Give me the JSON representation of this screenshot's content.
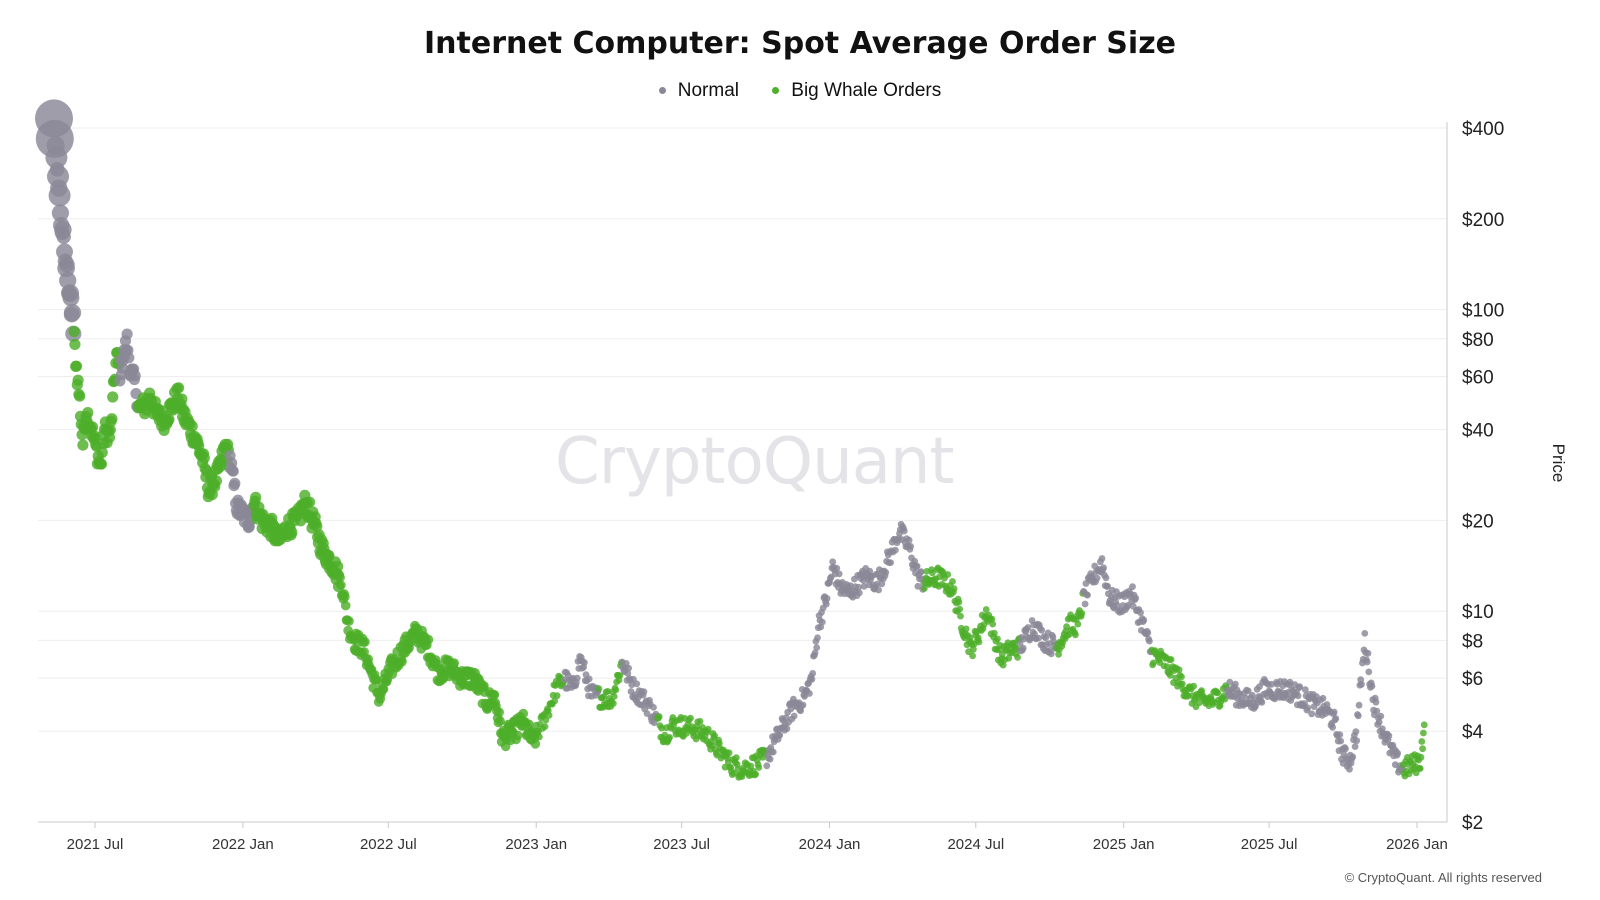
{
  "chart_data": {
    "type": "scatter",
    "title": "Internet Computer: Spot Average Order Size",
    "ylabel": "Price",
    "yscale": "log",
    "ylim": [
      2,
      420
    ],
    "y_ticks": [
      {
        "value": 400,
        "label": "$400"
      },
      {
        "value": 200,
        "label": "$200"
      },
      {
        "value": 100,
        "label": "$100"
      },
      {
        "value": 80,
        "label": "$80"
      },
      {
        "value": 60,
        "label": "$60"
      },
      {
        "value": 40,
        "label": "$40"
      },
      {
        "value": 20,
        "label": "$20"
      },
      {
        "value": 10,
        "label": "$10"
      },
      {
        "value": 8,
        "label": "$8"
      },
      {
        "value": 6,
        "label": "$6"
      },
      {
        "value": 4,
        "label": "$4"
      },
      {
        "value": 2,
        "label": "$2"
      }
    ],
    "x_ticks": [
      "2021 Jul",
      "2022 Jan",
      "2022 Jul",
      "2023 Jan",
      "2023 Jul",
      "2024 Jan",
      "2024 Jul",
      "2025 Jan",
      "2025 Jul",
      "2026 Jan"
    ],
    "x_start": "2021-05-10",
    "x_end": "2026-01-20",
    "legend": [
      {
        "name": "Normal",
        "color": "#8a8796"
      },
      {
        "name": "Big Whale Orders",
        "color": "#4daf2a"
      }
    ],
    "series": [
      {
        "name": "Price (daily, keyframes)",
        "keypoints": [
          [
            "2021-05-11",
            420,
            "Normal",
            "L"
          ],
          [
            "2021-05-12",
            380,
            "Normal",
            "L"
          ],
          [
            "2021-05-14",
            310,
            "Normal",
            "M"
          ],
          [
            "2021-05-16",
            260,
            "Normal",
            "M"
          ],
          [
            "2021-05-18",
            230,
            "Normal",
            "M"
          ],
          [
            "2021-05-20",
            200,
            "Normal",
            "S"
          ],
          [
            "2021-05-23",
            165,
            "Normal",
            "S"
          ],
          [
            "2021-05-26",
            140,
            "Normal",
            "S"
          ],
          [
            "2021-05-29",
            120,
            "Normal",
            "S"
          ],
          [
            "2021-06-01",
            110,
            "Normal",
            "S"
          ],
          [
            "2021-06-03",
            92,
            "Normal",
            "S"
          ],
          [
            "2021-06-05",
            80,
            "Big Whale Orders",
            "S"
          ],
          [
            "2021-06-08",
            64,
            "Big Whale Orders",
            "S"
          ],
          [
            "2021-06-12",
            50,
            "Big Whale Orders",
            "S"
          ],
          [
            "2021-06-16",
            36,
            "Big Whale Orders",
            "S"
          ],
          [
            "2021-06-20",
            46,
            "Big Whale Orders",
            "S"
          ],
          [
            "2021-06-25",
            42,
            "Big Whale Orders",
            "S"
          ],
          [
            "2021-07-02",
            35,
            "Big Whale Orders",
            "S"
          ],
          [
            "2021-07-08",
            30,
            "Big Whale Orders",
            "S"
          ],
          [
            "2021-07-13",
            40,
            "Big Whale Orders",
            "S"
          ],
          [
            "2021-07-20",
            38,
            "Big Whale Orders",
            "S"
          ],
          [
            "2021-07-25",
            58,
            "Big Whale Orders",
            "S"
          ],
          [
            "2021-07-28",
            70,
            "Big Whale Orders",
            "S"
          ],
          [
            "2021-08-01",
            62,
            "Normal",
            "S"
          ],
          [
            "2021-08-06",
            70,
            "Normal",
            "S"
          ],
          [
            "2021-08-10",
            79,
            "Normal",
            "S"
          ],
          [
            "2021-08-14",
            62,
            "Normal",
            "S"
          ],
          [
            "2021-08-20",
            57,
            "Normal",
            "S"
          ],
          [
            "2021-08-24",
            47,
            "Big Whale Orders",
            "S"
          ],
          [
            "2021-09-02",
            48,
            "Big Whale Orders",
            "S"
          ],
          [
            "2021-09-08",
            52,
            "Big Whale Orders",
            "S"
          ],
          [
            "2021-09-15",
            45,
            "Big Whale Orders",
            "S"
          ],
          [
            "2021-09-25",
            43,
            "Big Whale Orders",
            "S"
          ],
          [
            "2021-10-05",
            48,
            "Big Whale Orders",
            "S"
          ],
          [
            "2021-10-12",
            52,
            "Big Whale Orders",
            "S"
          ],
          [
            "2021-10-20",
            44,
            "Big Whale Orders",
            "S"
          ],
          [
            "2021-11-02",
            38,
            "Big Whale Orders",
            "S"
          ],
          [
            "2021-11-12",
            32,
            "Big Whale Orders",
            "S"
          ],
          [
            "2021-11-20",
            25,
            "Big Whale Orders",
            "S"
          ],
          [
            "2021-12-02",
            29,
            "Big Whale Orders",
            "S"
          ],
          [
            "2021-12-10",
            35,
            "Big Whale Orders",
            "S"
          ],
          [
            "2021-12-16",
            32,
            "Normal",
            "S"
          ],
          [
            "2021-12-25",
            22,
            "Normal",
            "S"
          ],
          [
            "2022-01-08",
            20,
            "Normal",
            "S"
          ],
          [
            "2022-01-15",
            23,
            "Big Whale Orders",
            "S"
          ],
          [
            "2022-01-25",
            20,
            "Big Whale Orders",
            "S"
          ],
          [
            "2022-02-05",
            19,
            "Big Whale Orders",
            "S"
          ],
          [
            "2022-02-15",
            17,
            "Big Whale Orders",
            "S"
          ],
          [
            "2022-02-25",
            19,
            "Big Whale Orders",
            "S"
          ],
          [
            "2022-03-10",
            20,
            "Big Whale Orders",
            "S"
          ],
          [
            "2022-03-20",
            23,
            "Big Whale Orders",
            "S"
          ],
          [
            "2022-04-01",
            19,
            "Big Whale Orders",
            "S"
          ],
          [
            "2022-04-10",
            16,
            "Big Whale Orders",
            "S"
          ],
          [
            "2022-04-25",
            14,
            "Big Whale Orders",
            "S"
          ],
          [
            "2022-05-05",
            12,
            "Big Whale Orders",
            "S"
          ],
          [
            "2022-05-12",
            9,
            "Big Whale Orders",
            "S"
          ],
          [
            "2022-05-20",
            8,
            "Big Whale Orders",
            "S"
          ],
          [
            "2022-06-01",
            7.5,
            "Big Whale Orders",
            "S"
          ],
          [
            "2022-06-12",
            6,
            "Big Whale Orders",
            "S"
          ],
          [
            "2022-06-20",
            5.2,
            "Big Whale Orders",
            "S"
          ],
          [
            "2022-07-05",
            6.5,
            "Big Whale Orders",
            "S"
          ],
          [
            "2022-07-20",
            7.5,
            "Big Whale Orders",
            "S"
          ],
          [
            "2022-08-05",
            8.5,
            "Big Whale Orders",
            "S"
          ],
          [
            "2022-08-20",
            7.5,
            "Big Whale Orders",
            "S"
          ],
          [
            "2022-09-01",
            6.3,
            "Big Whale Orders",
            "S"
          ],
          [
            "2022-09-15",
            6.5,
            "Big Whale Orders",
            "S"
          ],
          [
            "2022-10-01",
            6.0,
            "Big Whale Orders",
            "S"
          ],
          [
            "2022-10-15",
            6.0,
            "Big Whale Orders",
            "S"
          ],
          [
            "2022-11-01",
            5.0,
            "Big Whale Orders",
            "S"
          ],
          [
            "2022-11-10",
            5.2,
            "Big Whale Orders",
            "S"
          ],
          [
            "2022-11-20",
            3.8,
            "Big Whale Orders",
            "S"
          ],
          [
            "2022-12-05",
            4.0,
            "Big Whale Orders",
            "S"
          ],
          [
            "2022-12-15",
            4.3,
            "Big Whale Orders",
            "S"
          ],
          [
            "2022-12-28",
            3.7,
            "Big Whale Orders",
            "S"
          ],
          [
            "2023-01-10",
            4.3,
            "Big Whale Orders",
            "S"
          ],
          [
            "2023-01-25",
            5.5,
            "Big Whale Orders",
            "S"
          ],
          [
            "2023-02-05",
            6.0,
            "Normal",
            "S"
          ],
          [
            "2023-02-15",
            5.5,
            "Normal",
            "S"
          ],
          [
            "2023-02-25",
            7.0,
            "Normal",
            "S"
          ],
          [
            "2023-03-10",
            5.3,
            "Normal",
            "S"
          ],
          [
            "2023-03-20",
            5.2,
            "Big Whale Orders",
            "S"
          ],
          [
            "2023-04-05",
            5.1,
            "Big Whale Orders",
            "S"
          ],
          [
            "2023-04-18",
            6.8,
            "Normal",
            "S"
          ],
          [
            "2023-05-01",
            5.6,
            "Normal",
            "S"
          ],
          [
            "2023-05-20",
            4.9,
            "Normal",
            "S"
          ],
          [
            "2023-06-01",
            4.3,
            "Big Whale Orders",
            "S"
          ],
          [
            "2023-06-10",
            3.9,
            "Big Whale Orders",
            "S"
          ],
          [
            "2023-06-20",
            4.2,
            "Big Whale Orders",
            "S"
          ],
          [
            "2023-07-15",
            4.1,
            "Big Whale Orders",
            "S"
          ],
          [
            "2023-08-01",
            3.9,
            "Big Whale Orders",
            "S"
          ],
          [
            "2023-08-15",
            3.5,
            "Big Whale Orders",
            "S"
          ],
          [
            "2023-09-01",
            3.1,
            "Big Whale Orders",
            "S"
          ],
          [
            "2023-09-15",
            3.0,
            "Big Whale Orders",
            "S"
          ],
          [
            "2023-10-01",
            3.1,
            "Big Whale Orders",
            "S"
          ],
          [
            "2023-10-15",
            3.3,
            "Normal",
            "S"
          ],
          [
            "2023-11-01",
            4.0,
            "Normal",
            "S"
          ],
          [
            "2023-11-15",
            4.7,
            "Normal",
            "S"
          ],
          [
            "2023-12-01",
            5.2,
            "Normal",
            "S"
          ],
          [
            "2023-12-10",
            6.0,
            "Normal",
            "S"
          ],
          [
            "2023-12-18",
            9.0,
            "Normal",
            "S"
          ],
          [
            "2023-12-28",
            11.0,
            "Normal",
            "S"
          ],
          [
            "2024-01-05",
            14.0,
            "Normal",
            "S"
          ],
          [
            "2024-01-15",
            12.0,
            "Normal",
            "S"
          ],
          [
            "2024-01-25",
            11.5,
            "Normal",
            "S"
          ],
          [
            "2024-02-15",
            13.0,
            "Normal",
            "S"
          ],
          [
            "2024-03-01",
            12.5,
            "Normal",
            "S"
          ],
          [
            "2024-03-15",
            15.0,
            "Normal",
            "S"
          ],
          [
            "2024-03-28",
            18.5,
            "Normal",
            "S"
          ],
          [
            "2024-04-10",
            16.0,
            "Normal",
            "S"
          ],
          [
            "2024-04-20",
            13.0,
            "Normal",
            "S"
          ],
          [
            "2024-04-28",
            12.5,
            "Big Whale Orders",
            "S"
          ],
          [
            "2024-05-15",
            13.0,
            "Big Whale Orders",
            "S"
          ],
          [
            "2024-06-01",
            12.0,
            "Big Whale Orders",
            "S"
          ],
          [
            "2024-06-15",
            9.0,
            "Big Whale Orders",
            "S"
          ],
          [
            "2024-06-25",
            7.5,
            "Big Whale Orders",
            "S"
          ],
          [
            "2024-07-05",
            8.5,
            "Big Whale Orders",
            "S"
          ],
          [
            "2024-07-15",
            10.0,
            "Big Whale Orders",
            "S"
          ],
          [
            "2024-08-01",
            7.0,
            "Big Whale Orders",
            "S"
          ],
          [
            "2024-08-15",
            7.5,
            "Big Whale Orders",
            "S"
          ],
          [
            "2024-08-25",
            7.6,
            "Normal",
            "S"
          ],
          [
            "2024-09-10",
            9.0,
            "Normal",
            "S"
          ],
          [
            "2024-09-25",
            8.0,
            "Normal",
            "S"
          ],
          [
            "2024-10-10",
            7.6,
            "Big Whale Orders",
            "S"
          ],
          [
            "2024-10-25",
            9.0,
            "Big Whale Orders",
            "S"
          ],
          [
            "2024-11-05",
            9.0,
            "Big Whale Orders",
            "S"
          ],
          [
            "2024-11-12",
            11.0,
            "Normal",
            "S"
          ],
          [
            "2024-11-25",
            13.0,
            "Normal",
            "S"
          ],
          [
            "2024-12-05",
            14.5,
            "Normal",
            "S"
          ],
          [
            "2024-12-15",
            11.0,
            "Normal",
            "S"
          ],
          [
            "2024-12-30",
            10.5,
            "Normal",
            "S"
          ],
          [
            "2025-01-10",
            11.5,
            "Normal",
            "S"
          ],
          [
            "2025-01-25",
            9.0,
            "Normal",
            "S"
          ],
          [
            "2025-02-05",
            7.2,
            "Big Whale Orders",
            "S"
          ],
          [
            "2025-02-20",
            6.8,
            "Big Whale Orders",
            "S"
          ],
          [
            "2025-03-10",
            6.0,
            "Big Whale Orders",
            "S"
          ],
          [
            "2025-03-25",
            5.3,
            "Big Whale Orders",
            "S"
          ],
          [
            "2025-04-10",
            5.0,
            "Big Whale Orders",
            "S"
          ],
          [
            "2025-04-25",
            5.1,
            "Big Whale Orders",
            "S"
          ],
          [
            "2025-05-10",
            5.5,
            "Normal",
            "S"
          ],
          [
            "2025-05-25",
            5.2,
            "Normal",
            "S"
          ],
          [
            "2025-06-10",
            5.0,
            "Normal",
            "S"
          ],
          [
            "2025-06-25",
            5.5,
            "Normal",
            "S"
          ],
          [
            "2025-07-10",
            5.5,
            "Normal",
            "S"
          ],
          [
            "2025-07-25",
            5.5,
            "Normal",
            "S"
          ],
          [
            "2025-08-10",
            5.2,
            "Normal",
            "S"
          ],
          [
            "2025-08-25",
            4.9,
            "Normal",
            "S"
          ],
          [
            "2025-09-10",
            4.7,
            "Normal",
            "S"
          ],
          [
            "2025-09-20",
            4.3,
            "Normal",
            "S"
          ],
          [
            "2025-10-01",
            3.3,
            "Normal",
            "S"
          ],
          [
            "2025-10-10",
            3.2,
            "Normal",
            "S"
          ],
          [
            "2025-10-18",
            4.0,
            "Normal",
            "S"
          ],
          [
            "2025-10-28",
            8.0,
            "Normal",
            "S"
          ],
          [
            "2025-11-08",
            5.0,
            "Normal",
            "S"
          ],
          [
            "2025-11-20",
            4.0,
            "Normal",
            "S"
          ],
          [
            "2025-12-05",
            3.2,
            "Normal",
            "S"
          ],
          [
            "2025-12-15",
            3.0,
            "Big Whale Orders",
            "S"
          ],
          [
            "2025-12-28",
            3.1,
            "Big Whale Orders",
            "S"
          ],
          [
            "2026-01-05",
            3.2,
            "Big Whale Orders",
            "S"
          ],
          [
            "2026-01-10",
            4.2,
            "Big Whale Orders",
            "S"
          ]
        ]
      }
    ],
    "watermark": "CryptoQuant",
    "copyright": "© CryptoQuant. All rights reserved"
  }
}
